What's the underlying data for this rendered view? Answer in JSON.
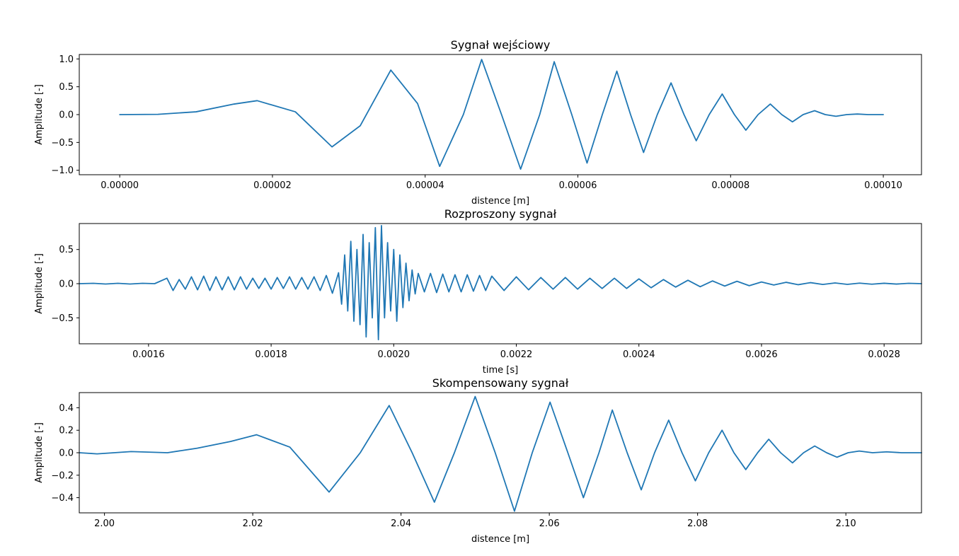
{
  "chart_data": [
    {
      "type": "line",
      "title": "Sygnał wejściowy",
      "xlabel": "distence [m]",
      "ylabel": "Amplitude [-]",
      "xlim": [
        -5.3e-06,
        0.000105
      ],
      "ylim": [
        -1.08,
        1.08
      ],
      "xticks": [
        0,
        2e-05,
        4e-05,
        6e-05,
        8e-05,
        0.0001
      ],
      "xtick_labels": [
        "0.00000",
        "0.00002",
        "0.00004",
        "0.00006",
        "0.00008",
        "0.00010"
      ],
      "yticks": [
        -1.0,
        -0.5,
        0.0,
        0.5,
        1.0
      ],
      "ytick_labels": [
        "−1.0",
        "−0.5",
        "0.0",
        "0.5",
        "1.0"
      ],
      "grid": false,
      "series": [
        {
          "color": "#1f77b4",
          "x": [
            0,
            5e-06,
            1e-05,
            1.5e-05,
            1.8e-05,
            2.3e-05,
            2.78e-05,
            3.15e-05,
            3.55e-05,
            3.9e-05,
            4.19e-05,
            4.5e-05,
            4.74e-05,
            5e-05,
            5.25e-05,
            5.5e-05,
            5.69e-05,
            5.92e-05,
            6.12e-05,
            6.32e-05,
            6.51e-05,
            6.69e-05,
            6.86e-05,
            7.04e-05,
            7.22e-05,
            7.39e-05,
            7.55e-05,
            7.72e-05,
            7.89e-05,
            8.05e-05,
            8.2e-05,
            8.36e-05,
            8.52e-05,
            8.67e-05,
            8.81e-05,
            8.95e-05,
            9.1e-05,
            9.24e-05,
            9.38e-05,
            9.52e-05,
            9.66e-05,
            9.8e-05,
            0.0001
          ],
          "y": [
            0,
            0.005,
            0.05,
            0.19,
            0.25,
            0.05,
            -0.58,
            -0.2,
            0.8,
            0.2,
            -0.93,
            0.0,
            0.99,
            0.0,
            -0.98,
            0.0,
            0.95,
            0.0,
            -0.87,
            0.0,
            0.78,
            0.0,
            -0.68,
            0.0,
            0.57,
            0.0,
            -0.47,
            0.0,
            0.37,
            0.0,
            -0.28,
            0.0,
            0.19,
            0.0,
            -0.13,
            0.0,
            0.07,
            0.0,
            -0.03,
            0.0,
            0.01,
            0.0,
            0.0
          ]
        }
      ]
    },
    {
      "type": "line",
      "title": "Rozproszony sygnał",
      "xlabel": "time [s]",
      "ylabel": "Amplitude [-]",
      "xlim": [
        0.001487,
        0.002861
      ],
      "ylim": [
        -0.88,
        0.88
      ],
      "xticks": [
        0.0016,
        0.0018,
        0.002,
        0.0022,
        0.0024,
        0.0026,
        0.0028
      ],
      "xtick_labels": [
        "0.0016",
        "0.0018",
        "0.0020",
        "0.0022",
        "0.0024",
        "0.0026",
        "0.0028"
      ],
      "yticks": [
        -0.5,
        0.0,
        0.5
      ],
      "ytick_labels": [
        "−0.5",
        "0.0",
        "0.5"
      ],
      "grid": false,
      "series": [
        {
          "color": "#1f77b4",
          "x": [
            0.001487,
            0.00151,
            0.00153,
            0.00155,
            0.00157,
            0.00159,
            0.00161,
            0.00163,
            0.00164,
            0.00165,
            0.00166,
            0.00167,
            0.00168,
            0.00169,
            0.0017,
            0.00171,
            0.00172,
            0.00173,
            0.00174,
            0.00175,
            0.00176,
            0.00177,
            0.00178,
            0.00179,
            0.0018,
            0.00181,
            0.00182,
            0.00183,
            0.00184,
            0.00185,
            0.00186,
            0.00187,
            0.00188,
            0.00189,
            0.0019,
            0.00191,
            0.001915,
            0.00192,
            0.001925,
            0.00193,
            0.001935,
            0.00194,
            0.001945,
            0.00195,
            0.001955,
            0.00196,
            0.001965,
            0.00197,
            0.001975,
            0.00198,
            0.001985,
            0.00199,
            0.001995,
            0.002,
            0.002005,
            0.00201,
            0.002015,
            0.00202,
            0.002025,
            0.00203,
            0.002035,
            0.00204,
            0.00205,
            0.00206,
            0.00207,
            0.00208,
            0.00209,
            0.0021,
            0.00211,
            0.00212,
            0.00213,
            0.00214,
            0.00215,
            0.00216,
            0.00218,
            0.0022,
            0.00222,
            0.00224,
            0.00226,
            0.00228,
            0.0023,
            0.00232,
            0.00234,
            0.00236,
            0.00238,
            0.0024,
            0.00242,
            0.00244,
            0.00246,
            0.00248,
            0.0025,
            0.00252,
            0.00254,
            0.00256,
            0.00258,
            0.0026,
            0.00262,
            0.00264,
            0.00266,
            0.00268,
            0.0027,
            0.00272,
            0.00274,
            0.00276,
            0.00278,
            0.0028,
            0.00282,
            0.00284,
            0.002861
          ],
          "y": [
            0,
            0.005,
            -0.005,
            0.005,
            -0.005,
            0.005,
            0.0,
            0.08,
            -0.1,
            0.06,
            -0.08,
            0.1,
            -0.09,
            0.11,
            -0.1,
            0.1,
            -0.09,
            0.1,
            -0.09,
            0.1,
            -0.08,
            0.08,
            -0.07,
            0.08,
            -0.08,
            0.09,
            -0.07,
            0.1,
            -0.08,
            0.09,
            -0.08,
            0.1,
            -0.1,
            0.12,
            -0.14,
            0.16,
            -0.3,
            0.42,
            -0.4,
            0.62,
            -0.55,
            0.5,
            -0.6,
            0.72,
            -0.78,
            0.6,
            -0.5,
            0.82,
            -0.82,
            0.85,
            -0.5,
            0.6,
            -0.4,
            0.5,
            -0.55,
            0.42,
            -0.35,
            0.3,
            -0.25,
            0.2,
            -0.15,
            0.15,
            -0.12,
            0.15,
            -0.13,
            0.14,
            -0.12,
            0.13,
            -0.12,
            0.13,
            -0.11,
            0.12,
            -0.1,
            0.11,
            -0.1,
            0.1,
            -0.09,
            0.09,
            -0.08,
            0.09,
            -0.08,
            0.08,
            -0.07,
            0.08,
            -0.07,
            0.07,
            -0.06,
            0.06,
            -0.05,
            0.05,
            -0.045,
            0.04,
            -0.035,
            0.035,
            -0.03,
            0.025,
            -0.02,
            0.02,
            -0.015,
            0.015,
            -0.012,
            0.01,
            -0.01,
            0.008,
            -0.008,
            0.006,
            -0.006,
            0.005,
            0.0
          ]
        }
      ]
    },
    {
      "type": "line",
      "title": "Skompensowany sygnał",
      "xlabel": "distence [m]",
      "ylabel": "Amplitude [-]",
      "xlim": [
        1.9966,
        2.1102
      ],
      "ylim": [
        -0.535,
        0.535
      ],
      "xticks": [
        2.0,
        2.02,
        2.04,
        2.06,
        2.08,
        2.1
      ],
      "xtick_labels": [
        "2.00",
        "2.02",
        "2.04",
        "2.06",
        "2.08",
        "2.10"
      ],
      "yticks": [
        -0.4,
        -0.2,
        0.0,
        0.2,
        0.4
      ],
      "ytick_labels": [
        "−0.4",
        "−0.2",
        "0.0",
        "0.2",
        "0.4"
      ],
      "grid": false,
      "series": [
        {
          "color": "#1f77b4",
          "x": [
            1.9966,
            1.999,
            2.0036,
            2.0085,
            2.0125,
            2.017,
            2.0205,
            2.025,
            2.0303,
            2.0345,
            2.0384,
            2.0415,
            2.0445,
            2.0472,
            2.05,
            2.0527,
            2.0553,
            2.0577,
            2.0601,
            2.0625,
            2.0646,
            2.0667,
            2.0685,
            2.0705,
            2.0724,
            2.0742,
            2.0761,
            2.0779,
            2.0797,
            2.0815,
            2.0833,
            2.0849,
            2.0865,
            2.0881,
            2.0896,
            2.0912,
            2.0928,
            2.0943,
            2.0958,
            2.0974,
            2.0988,
            2.1003,
            2.1018,
            2.1036,
            2.1055,
            2.1075,
            2.1102
          ],
          "y": [
            0.0,
            -0.01,
            0.01,
            0.0,
            0.04,
            0.1,
            0.16,
            0.05,
            -0.35,
            0.0,
            0.42,
            0.0,
            -0.44,
            0.0,
            0.5,
            0.0,
            -0.52,
            0.0,
            0.45,
            0.0,
            -0.4,
            0.0,
            0.38,
            0.0,
            -0.33,
            0.0,
            0.29,
            0.0,
            -0.25,
            0.0,
            0.2,
            0.0,
            -0.15,
            0.0,
            0.12,
            0.0,
            -0.09,
            0.0,
            0.06,
            0.0,
            -0.04,
            0.0,
            0.015,
            0.0,
            0.008,
            0.0,
            0.0
          ]
        }
      ]
    }
  ]
}
